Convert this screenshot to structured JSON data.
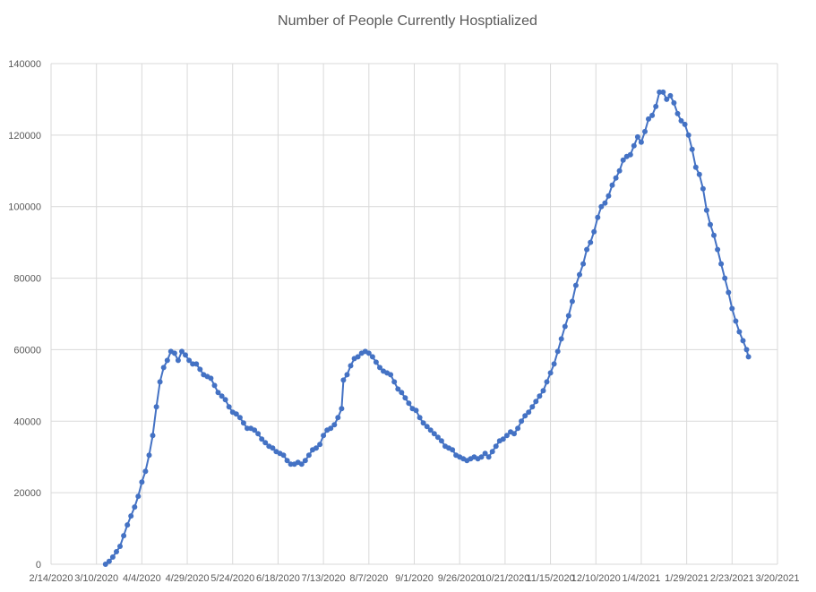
{
  "chart_data": {
    "type": "line",
    "title": "Number of People Currently Hosptialized",
    "xlabel": "",
    "ylabel": "",
    "x_axis": {
      "type": "date",
      "min": "2020-02-14",
      "max": "2021-03-20",
      "tick_labels": [
        "2/14/2020",
        "3/10/2020",
        "4/4/2020",
        "4/29/2020",
        "5/24/2020",
        "6/18/2020",
        "7/13/2020",
        "8/7/2020",
        "9/1/2020",
        "9/26/2020",
        "10/21/2020",
        "11/15/2020",
        "12/10/2020",
        "1/4/2021",
        "1/29/2021",
        "2/23/2021",
        "3/20/2021"
      ]
    },
    "y_axis": {
      "min": 0,
      "max": 140000,
      "tick_labels": [
        "0",
        "20000",
        "40000",
        "60000",
        "80000",
        "100000",
        "120000",
        "140000"
      ]
    },
    "grid": "vertical and horizontal",
    "legend": "none",
    "series": [
      {
        "color": "#4472c4",
        "marker": "circle",
        "points": [
          [
            "2020-03-15",
            0
          ],
          [
            "2020-03-17",
            800
          ],
          [
            "2020-03-19",
            2000
          ],
          [
            "2020-03-21",
            3500
          ],
          [
            "2020-03-23",
            5000
          ],
          [
            "2020-03-25",
            8000
          ],
          [
            "2020-03-27",
            11000
          ],
          [
            "2020-03-29",
            13500
          ],
          [
            "2020-03-31",
            16000
          ],
          [
            "2020-04-02",
            19000
          ],
          [
            "2020-04-04",
            23000
          ],
          [
            "2020-04-06",
            26000
          ],
          [
            "2020-04-08",
            30500
          ],
          [
            "2020-04-10",
            36000
          ],
          [
            "2020-04-12",
            44000
          ],
          [
            "2020-04-14",
            51000
          ],
          [
            "2020-04-16",
            55000
          ],
          [
            "2020-04-18",
            57000
          ],
          [
            "2020-04-20",
            59500
          ],
          [
            "2020-04-22",
            59000
          ],
          [
            "2020-04-24",
            57000
          ],
          [
            "2020-04-26",
            59500
          ],
          [
            "2020-04-28",
            58500
          ],
          [
            "2020-04-30",
            57000
          ],
          [
            "2020-05-02",
            56000
          ],
          [
            "2020-05-04",
            56000
          ],
          [
            "2020-05-06",
            54500
          ],
          [
            "2020-05-08",
            53000
          ],
          [
            "2020-05-10",
            52500
          ],
          [
            "2020-05-12",
            52000
          ],
          [
            "2020-05-14",
            50000
          ],
          [
            "2020-05-16",
            48000
          ],
          [
            "2020-05-18",
            47000
          ],
          [
            "2020-05-20",
            46000
          ],
          [
            "2020-05-22",
            44000
          ],
          [
            "2020-05-24",
            42500
          ],
          [
            "2020-05-26",
            42000
          ],
          [
            "2020-05-28",
            41000
          ],
          [
            "2020-05-30",
            39500
          ],
          [
            "2020-06-01",
            38000
          ],
          [
            "2020-06-03",
            38000
          ],
          [
            "2020-06-05",
            37500
          ],
          [
            "2020-06-07",
            36500
          ],
          [
            "2020-06-09",
            35000
          ],
          [
            "2020-06-11",
            34000
          ],
          [
            "2020-06-13",
            33000
          ],
          [
            "2020-06-15",
            32500
          ],
          [
            "2020-06-17",
            31500
          ],
          [
            "2020-06-19",
            31000
          ],
          [
            "2020-06-21",
            30500
          ],
          [
            "2020-06-23",
            29000
          ],
          [
            "2020-06-25",
            28000
          ],
          [
            "2020-06-27",
            28000
          ],
          [
            "2020-06-29",
            28500
          ],
          [
            "2020-07-01",
            28000
          ],
          [
            "2020-07-03",
            29000
          ],
          [
            "2020-07-05",
            30500
          ],
          [
            "2020-07-07",
            32000
          ],
          [
            "2020-07-09",
            32500
          ],
          [
            "2020-07-11",
            33500
          ],
          [
            "2020-07-13",
            36000
          ],
          [
            "2020-07-15",
            37500
          ],
          [
            "2020-07-17",
            38000
          ],
          [
            "2020-07-19",
            39000
          ],
          [
            "2020-07-21",
            41000
          ],
          [
            "2020-07-23",
            43500
          ],
          [
            "2020-07-24",
            51500
          ],
          [
            "2020-07-26",
            53000
          ],
          [
            "2020-07-28",
            55500
          ],
          [
            "2020-07-30",
            57500
          ],
          [
            "2020-08-01",
            58000
          ],
          [
            "2020-08-03",
            59000
          ],
          [
            "2020-08-05",
            59500
          ],
          [
            "2020-08-07",
            59000
          ],
          [
            "2020-08-09",
            58000
          ],
          [
            "2020-08-11",
            56500
          ],
          [
            "2020-08-13",
            55000
          ],
          [
            "2020-08-15",
            54000
          ],
          [
            "2020-08-17",
            53500
          ],
          [
            "2020-08-19",
            53000
          ],
          [
            "2020-08-21",
            51000
          ],
          [
            "2020-08-23",
            49000
          ],
          [
            "2020-08-25",
            48000
          ],
          [
            "2020-08-27",
            46500
          ],
          [
            "2020-08-29",
            45000
          ],
          [
            "2020-08-31",
            43500
          ],
          [
            "2020-09-02",
            43000
          ],
          [
            "2020-09-04",
            41000
          ],
          [
            "2020-09-06",
            39500
          ],
          [
            "2020-09-08",
            38500
          ],
          [
            "2020-09-10",
            37500
          ],
          [
            "2020-09-12",
            36500
          ],
          [
            "2020-09-14",
            35500
          ],
          [
            "2020-09-16",
            34500
          ],
          [
            "2020-09-18",
            33000
          ],
          [
            "2020-09-20",
            32500
          ],
          [
            "2020-09-22",
            32000
          ],
          [
            "2020-09-24",
            30500
          ],
          [
            "2020-09-26",
            30000
          ],
          [
            "2020-09-28",
            29500
          ],
          [
            "2020-09-30",
            29000
          ],
          [
            "2020-10-02",
            29500
          ],
          [
            "2020-10-04",
            30000
          ],
          [
            "2020-10-06",
            29500
          ],
          [
            "2020-10-08",
            30000
          ],
          [
            "2020-10-10",
            31000
          ],
          [
            "2020-10-12",
            30000
          ],
          [
            "2020-10-14",
            31500
          ],
          [
            "2020-10-16",
            33000
          ],
          [
            "2020-10-18",
            34500
          ],
          [
            "2020-10-20",
            35000
          ],
          [
            "2020-10-22",
            36000
          ],
          [
            "2020-10-24",
            37000
          ],
          [
            "2020-10-26",
            36500
          ],
          [
            "2020-10-28",
            38000
          ],
          [
            "2020-10-30",
            40000
          ],
          [
            "2020-11-01",
            41500
          ],
          [
            "2020-11-03",
            42500
          ],
          [
            "2020-11-05",
            44000
          ],
          [
            "2020-11-07",
            45500
          ],
          [
            "2020-11-09",
            47000
          ],
          [
            "2020-11-11",
            48500
          ],
          [
            "2020-11-13",
            51000
          ],
          [
            "2020-11-15",
            53500
          ],
          [
            "2020-11-17",
            56000
          ],
          [
            "2020-11-19",
            59500
          ],
          [
            "2020-11-21",
            63000
          ],
          [
            "2020-11-23",
            66500
          ],
          [
            "2020-11-25",
            69500
          ],
          [
            "2020-11-27",
            73500
          ],
          [
            "2020-11-29",
            78000
          ],
          [
            "2020-12-01",
            81000
          ],
          [
            "2020-12-03",
            84000
          ],
          [
            "2020-12-05",
            88000
          ],
          [
            "2020-12-07",
            90000
          ],
          [
            "2020-12-09",
            93000
          ],
          [
            "2020-12-11",
            97000
          ],
          [
            "2020-12-13",
            100000
          ],
          [
            "2020-12-15",
            101000
          ],
          [
            "2020-12-17",
            103000
          ],
          [
            "2020-12-19",
            106000
          ],
          [
            "2020-12-21",
            108000
          ],
          [
            "2020-12-23",
            110000
          ],
          [
            "2020-12-25",
            113000
          ],
          [
            "2020-12-27",
            114000
          ],
          [
            "2020-12-29",
            114500
          ],
          [
            "2020-12-31",
            117000
          ],
          [
            "2021-01-02",
            119500
          ],
          [
            "2021-01-04",
            118000
          ],
          [
            "2021-01-06",
            121000
          ],
          [
            "2021-01-08",
            124500
          ],
          [
            "2021-01-10",
            125500
          ],
          [
            "2021-01-12",
            128000
          ],
          [
            "2021-01-14",
            132000
          ],
          [
            "2021-01-16",
            132000
          ],
          [
            "2021-01-18",
            130000
          ],
          [
            "2021-01-20",
            131000
          ],
          [
            "2021-01-22",
            129000
          ],
          [
            "2021-01-24",
            126000
          ],
          [
            "2021-01-26",
            124000
          ],
          [
            "2021-01-28",
            123000
          ],
          [
            "2021-01-30",
            120000
          ],
          [
            "2021-02-01",
            116000
          ],
          [
            "2021-02-03",
            111000
          ],
          [
            "2021-02-05",
            109000
          ],
          [
            "2021-02-07",
            105000
          ],
          [
            "2021-02-09",
            99000
          ],
          [
            "2021-02-11",
            95000
          ],
          [
            "2021-02-13",
            92000
          ],
          [
            "2021-02-15",
            88000
          ],
          [
            "2021-02-17",
            84000
          ],
          [
            "2021-02-19",
            80000
          ],
          [
            "2021-02-21",
            76000
          ],
          [
            "2021-02-23",
            71500
          ],
          [
            "2021-02-25",
            68000
          ],
          [
            "2021-02-27",
            65000
          ],
          [
            "2021-03-01",
            62500
          ],
          [
            "2021-03-03",
            60000
          ],
          [
            "2021-03-04",
            58000
          ]
        ]
      }
    ]
  }
}
